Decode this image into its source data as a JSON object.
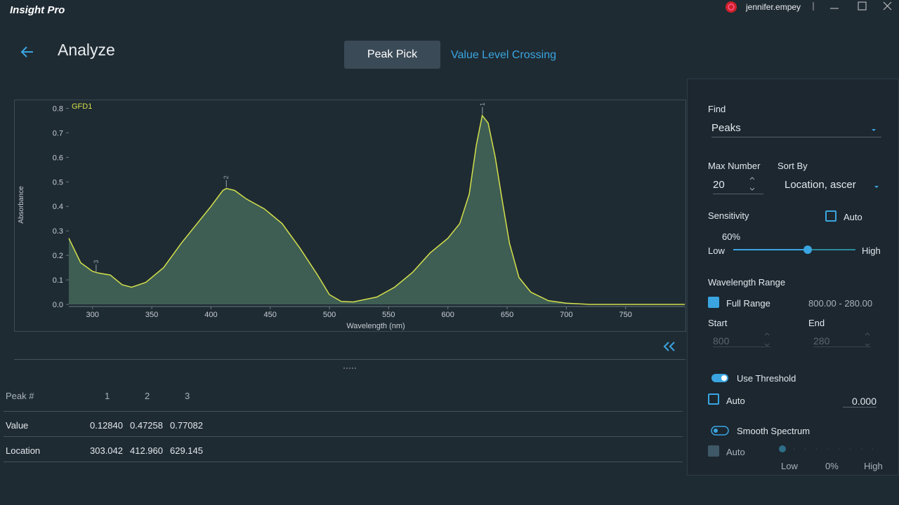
{
  "app": {
    "title": "Insight Pro",
    "user": "jennifer.empey"
  },
  "header": {
    "title": "Analyze",
    "tabs": [
      "Peak Pick",
      "Value Level Crossing"
    ]
  },
  "chart_data": {
    "type": "area",
    "series_label": "GFD1",
    "x_label": "Wavelength (nm)",
    "y_label": "Absorbance",
    "color": "#d4e04a",
    "fill": "#3e5e54",
    "x": [
      280,
      290,
      300,
      305,
      315,
      325,
      333,
      345,
      360,
      375,
      390,
      400,
      410,
      413,
      420,
      430,
      445,
      460,
      475,
      490,
      500,
      510,
      520,
      540,
      555,
      570,
      585,
      600,
      610,
      618,
      624,
      629,
      634,
      640,
      646,
      652,
      660,
      670,
      685,
      700,
      720,
      800
    ],
    "values": [
      0.27,
      0.17,
      0.135,
      0.128,
      0.12,
      0.08,
      0.07,
      0.09,
      0.15,
      0.25,
      0.34,
      0.4,
      0.465,
      0.473,
      0.465,
      0.43,
      0.39,
      0.33,
      0.23,
      0.12,
      0.04,
      0.012,
      0.01,
      0.03,
      0.07,
      0.13,
      0.21,
      0.27,
      0.33,
      0.45,
      0.65,
      0.771,
      0.74,
      0.6,
      0.42,
      0.25,
      0.11,
      0.05,
      0.015,
      0.005,
      0,
      0
    ],
    "xlim": [
      280,
      800
    ],
    "ylim": [
      0,
      0.83
    ],
    "xticks": [
      300,
      350,
      400,
      450,
      500,
      550,
      600,
      650,
      700,
      750
    ],
    "yticks": [
      {
        "value": 0,
        "label": "0.0"
      },
      0.1,
      0.2,
      0.3,
      0.4,
      0.5,
      0.6,
      0.7,
      0.8
    ],
    "peaks": {
      "labels": [
        "3",
        "2",
        "1"
      ],
      "x": [
        303.042,
        412.96,
        629.145
      ],
      "y": [
        0.1284,
        0.47258,
        0.77082
      ]
    }
  },
  "table": {
    "header": "Peak #",
    "columns": [
      "1",
      "2",
      "3"
    ],
    "rows": [
      {
        "label": "Value",
        "cells": [
          "0.12840",
          "0.47258",
          "0.77082"
        ]
      },
      {
        "label": "Location",
        "cells": [
          "303.042",
          "412.960",
          "629.145"
        ]
      }
    ]
  },
  "panel": {
    "find_label": "Find",
    "find_value": "Peaks",
    "max_label": "Max Number",
    "max_value": "20",
    "sort_label": "Sort By",
    "sort_value": "Location, ascer",
    "sensitivity_label": "Sensitivity",
    "sensitivity_auto": "Auto",
    "sensitivity_value": "60%",
    "low": "Low",
    "high": "High",
    "range_label": "Wavelength Range",
    "full_range": "Full Range",
    "range_value": "800.00 - 280.00",
    "start_label": "Start",
    "start_value": "800",
    "end_label": "End",
    "end_value": "280",
    "threshold_label": "Use Threshold",
    "threshold_auto": "Auto",
    "threshold_value": "0.000",
    "smooth_label": "Smooth Spectrum",
    "smooth_auto": "Auto",
    "smooth_low": "Low",
    "smooth_value": "0%",
    "smooth_high": "High"
  }
}
